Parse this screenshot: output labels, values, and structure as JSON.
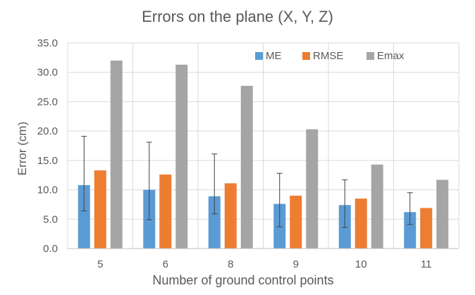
{
  "chart_data": {
    "type": "bar",
    "title": "Errors on the plane (X, Y, Z)",
    "xlabel": "Number of ground control points",
    "ylabel": "Error (cm)",
    "categories": [
      "5",
      "6",
      "8",
      "9",
      "10",
      "11"
    ],
    "ylim": [
      0,
      35
    ],
    "yticks": [
      "0.0",
      "5.0",
      "10.0",
      "15.0",
      "20.0",
      "25.0",
      "30.0",
      "35.0"
    ],
    "grid": true,
    "legend_position": "top-right",
    "series": [
      {
        "name": "ME",
        "color": "#5B9BD5",
        "values": [
          10.8,
          10.0,
          8.9,
          7.6,
          7.4,
          6.2
        ],
        "error_low": [
          6.4,
          4.9,
          5.9,
          3.7,
          3.6,
          4.1
        ],
        "error_high": [
          19.1,
          18.1,
          16.1,
          12.8,
          11.7,
          9.5
        ]
      },
      {
        "name": "RMSE",
        "color": "#ED7D31",
        "values": [
          13.3,
          12.6,
          11.1,
          9.0,
          8.5,
          6.9
        ]
      },
      {
        "name": "Emax",
        "color": "#A5A5A5",
        "values": [
          32.0,
          31.3,
          27.7,
          20.3,
          14.3,
          11.7
        ]
      }
    ]
  }
}
